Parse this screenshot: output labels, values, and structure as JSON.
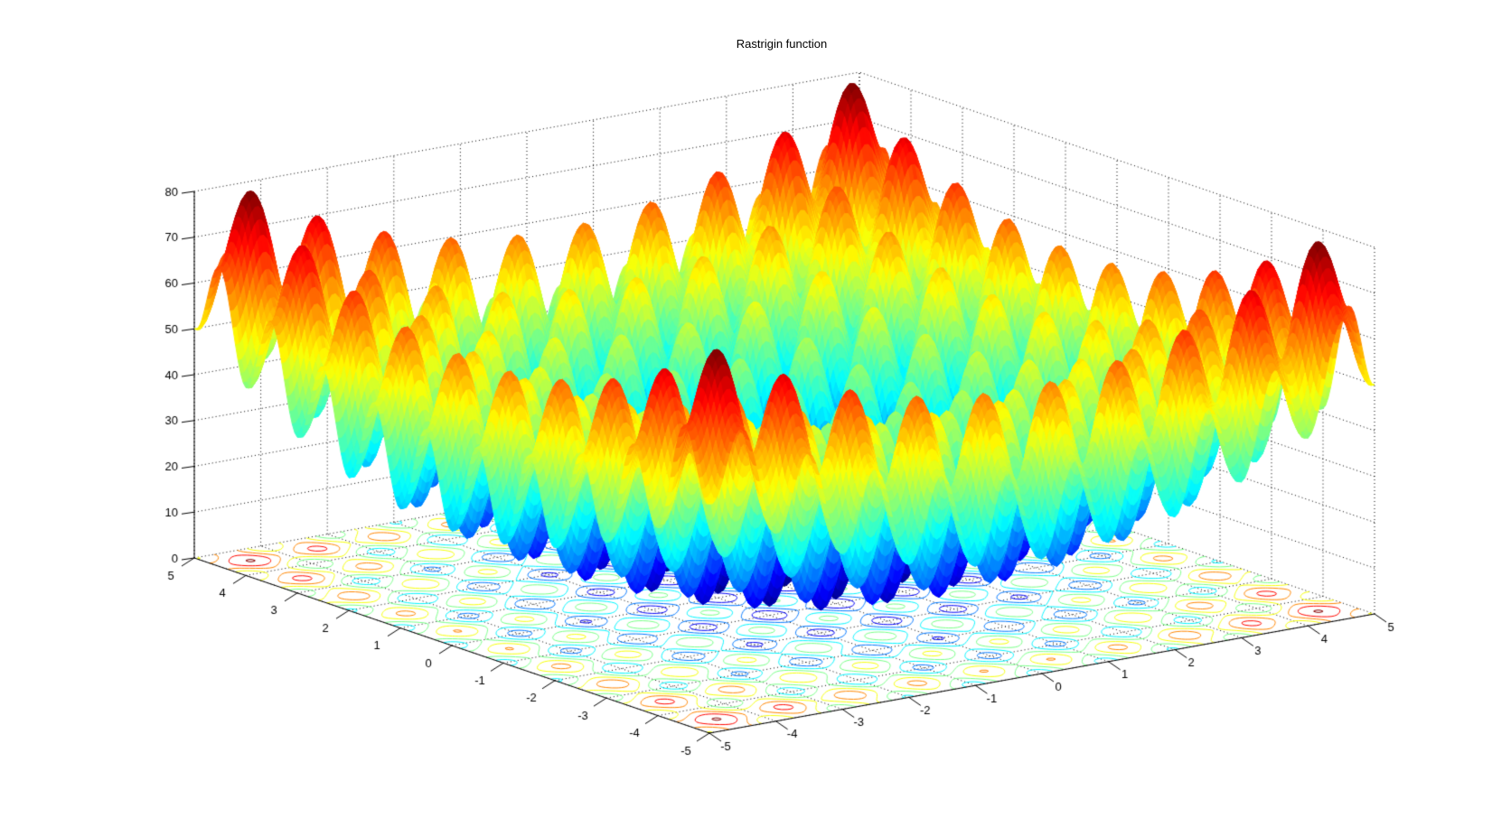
{
  "figure": {
    "title": "Rastrigin function",
    "background_color": "#ffffff",
    "axis_color": "#000000",
    "grid_color": "#000000"
  },
  "chart_data": {
    "type": "surface",
    "subtype": "3d-surface-with-base-contour (MATLAB surfc style)",
    "title": "Rastrigin function",
    "formula": "f(x,y) = 20 + x^2 + y^2 - 10*(cos(2*pi*x) + cos(2*pi*y))",
    "x_domain": [
      -5,
      5
    ],
    "y_domain": [
      -5,
      5
    ],
    "z_limits": [
      0,
      80
    ],
    "z_data_max": 80.7,
    "x_ticks": [
      -5,
      -4,
      -3,
      -2,
      -1,
      0,
      1,
      2,
      3,
      4,
      5
    ],
    "x_tick_labels": [
      "-5",
      "-4",
      "-3",
      "-2",
      "-1",
      "0",
      "1",
      "2",
      "3",
      "4",
      "5"
    ],
    "y_ticks_top_to_bottom": [
      5,
      4,
      3,
      2,
      1,
      0,
      -1,
      -2,
      -3,
      -4,
      -5
    ],
    "y_tick_labels": [
      "5",
      "4",
      "3",
      "2",
      "1",
      "0",
      "-1",
      "-2",
      "-3",
      "-4",
      "-5"
    ],
    "z_ticks": [
      0,
      10,
      20,
      30,
      40,
      50,
      60,
      70,
      80
    ],
    "z_tick_labels": [
      "0",
      "10",
      "20",
      "30",
      "40",
      "50",
      "60",
      "70",
      "80"
    ],
    "grid_style": "dotted",
    "colormap": "jet",
    "colormap_size": 64,
    "color_axis": [
      0,
      80.7
    ],
    "contour_levels": [
      10,
      20,
      30,
      40,
      50,
      60,
      70,
      80
    ],
    "surface_grid_step": 0.05,
    "view": {
      "azimuth_deg": -37.5,
      "elevation_deg": 30,
      "projection": "orthographic"
    }
  }
}
